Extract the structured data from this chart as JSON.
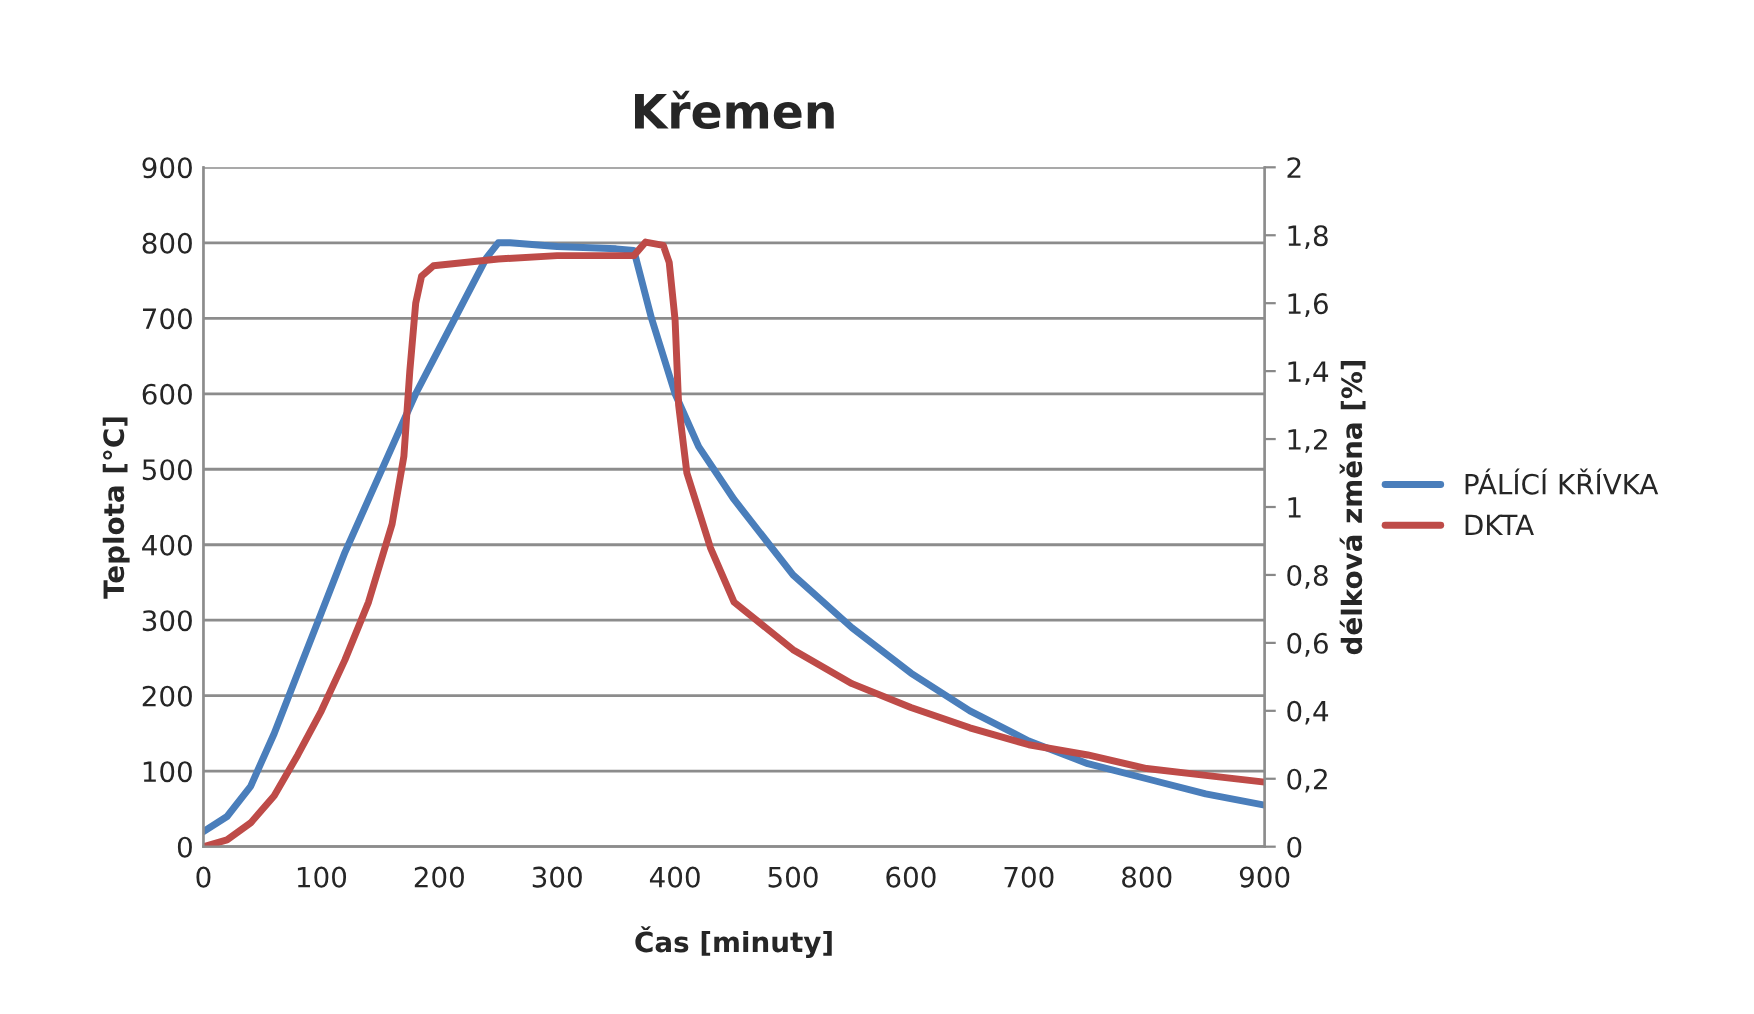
{
  "chart_data": {
    "type": "line",
    "title": "Křemen",
    "xlabel": "Čas [minuty]",
    "ylabel": "Teplota [°C]",
    "y2label": "délková změna [%]",
    "xlim": [
      0,
      900
    ],
    "xticks": [
      0,
      100,
      200,
      300,
      400,
      500,
      600,
      700,
      800,
      900
    ],
    "ylim": [
      0,
      900
    ],
    "yticks": [
      0,
      100,
      200,
      300,
      400,
      500,
      600,
      700,
      800,
      900
    ],
    "y2lim": [
      0,
      2
    ],
    "y2ticks": [
      0,
      {
        "value": 0.2,
        "label": "0,2"
      },
      {
        "value": 0.4,
        "label": "0,4"
      },
      {
        "value": 0.6,
        "label": "0,6"
      },
      {
        "value": 0.8,
        "label": "0,8"
      },
      1,
      {
        "value": 1.2,
        "label": "1,2"
      },
      {
        "value": 1.4,
        "label": "1,4"
      },
      {
        "value": 1.6,
        "label": "1,6"
      },
      {
        "value": 1.8,
        "label": "1,8"
      },
      2
    ],
    "grid": "y",
    "legend": "right",
    "marker": "none",
    "line_style": "solid",
    "series": [
      {
        "name": "PÁLÍCÍ KŘÍVKA",
        "color": "#4a7ebb",
        "x": [
          0,
          20,
          40,
          60,
          80,
          100,
          120,
          140,
          160,
          180,
          200,
          220,
          240,
          250,
          260,
          300,
          350,
          365,
          380,
          400,
          420,
          450,
          500,
          550,
          600,
          650,
          700,
          750,
          800,
          850,
          900
        ],
        "values": [
          20,
          40,
          80,
          150,
          230,
          310,
          390,
          460,
          530,
          600,
          660,
          720,
          780,
          800,
          800,
          795,
          792,
          790,
          700,
          600,
          530,
          460,
          360,
          290,
          230,
          180,
          140,
          110,
          90,
          70,
          55
        ]
      },
      {
        "name": "DKTA",
        "color": "#be4b48",
        "axis": "y2",
        "x": [
          0,
          20,
          40,
          60,
          80,
          100,
          120,
          140,
          160,
          170,
          175,
          180,
          185,
          195,
          250,
          300,
          365,
          375,
          390,
          395,
          400,
          403,
          410,
          430,
          450,
          500,
          550,
          600,
          650,
          700,
          750,
          800,
          850,
          900
        ],
        "values": [
          0,
          0.02,
          0.07,
          0.15,
          0.27,
          0.4,
          0.55,
          0.72,
          0.95,
          1.15,
          1.4,
          1.6,
          1.68,
          1.71,
          1.73,
          1.74,
          1.74,
          1.78,
          1.77,
          1.72,
          1.55,
          1.3,
          1.1,
          0.88,
          0.72,
          0.58,
          0.48,
          0.41,
          0.35,
          0.3,
          0.27,
          0.23,
          0.21,
          0.19
        ]
      }
    ]
  }
}
